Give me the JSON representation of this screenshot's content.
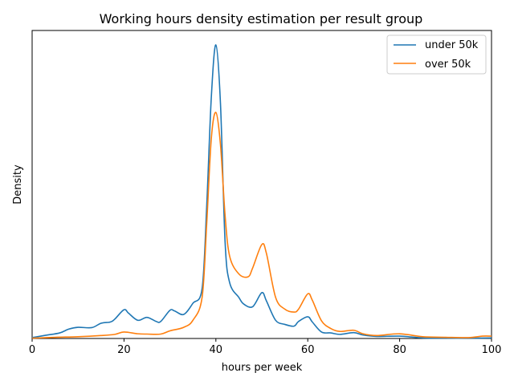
{
  "chart_data": {
    "type": "line",
    "title": "Working hours density estimation per result group",
    "xlabel": "hours per week",
    "ylabel": "Density",
    "xlim": [
      0,
      100
    ],
    "ylim": [
      0,
      1
    ],
    "y_ticks_visible": false,
    "x_ticks": [
      "0",
      "20",
      "40",
      "60",
      "80",
      "100"
    ],
    "x_tick_values": [
      0,
      20,
      40,
      60,
      80,
      100
    ],
    "grid": false,
    "legend_position": "top-right",
    "series": [
      {
        "name": "under 50k",
        "color": "#1f77b4",
        "x": [
          0,
          3,
          6,
          8,
          10,
          13,
          15,
          17,
          18,
          20,
          21,
          23,
          25,
          27,
          28,
          30,
          31,
          33,
          35,
          37,
          38,
          39,
          40,
          41,
          42,
          43,
          45,
          46,
          48,
          50,
          51,
          53,
          55,
          57,
          58,
          60,
          61,
          63,
          65,
          67,
          70,
          72,
          75,
          80,
          85,
          90,
          95,
          100
        ],
        "y": [
          0.003,
          0.011,
          0.019,
          0.032,
          0.038,
          0.037,
          0.052,
          0.056,
          0.066,
          0.098,
          0.086,
          0.062,
          0.072,
          0.058,
          0.058,
          0.096,
          0.094,
          0.082,
          0.12,
          0.17,
          0.45,
          0.82,
          1.0,
          0.8,
          0.33,
          0.19,
          0.14,
          0.118,
          0.108,
          0.156,
          0.128,
          0.062,
          0.048,
          0.042,
          0.058,
          0.074,
          0.056,
          0.022,
          0.019,
          0.014,
          0.02,
          0.012,
          0.007,
          0.008,
          0.002,
          0.001,
          0.001,
          0.002
        ]
      },
      {
        "name": "over 50k",
        "color": "#ff7f0e",
        "x": [
          0,
          5,
          10,
          15,
          18,
          20,
          23,
          25,
          28,
          30,
          33,
          35,
          37,
          38,
          39,
          40,
          41,
          42,
          43,
          45,
          47,
          48,
          50,
          51,
          53,
          55,
          57,
          58,
          60,
          61,
          63,
          65,
          67,
          70,
          72,
          75,
          80,
          85,
          90,
          95,
          98,
          100
        ],
        "y": [
          0.001,
          0.004,
          0.006,
          0.01,
          0.014,
          0.022,
          0.016,
          0.015,
          0.015,
          0.026,
          0.038,
          0.062,
          0.14,
          0.39,
          0.68,
          0.77,
          0.66,
          0.42,
          0.28,
          0.22,
          0.21,
          0.24,
          0.32,
          0.29,
          0.14,
          0.1,
          0.09,
          0.1,
          0.152,
          0.13,
          0.06,
          0.034,
          0.024,
          0.028,
          0.016,
          0.01,
          0.016,
          0.006,
          0.004,
          0.003,
          0.008,
          0.008
        ]
      }
    ]
  }
}
